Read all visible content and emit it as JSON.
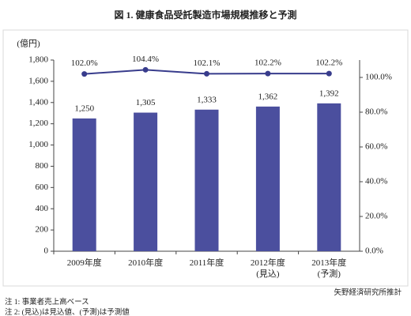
{
  "chart_data": {
    "type": "bar",
    "title": "図 1. 健康食品受託製造市場規模推移と予測",
    "y_label": "(億円)",
    "categories": [
      "2009年度",
      "2010年度",
      "2011年度",
      "2012年度\n(見込)",
      "2013年度\n(予測)"
    ],
    "series": [
      {
        "values": [
          1250,
          1305,
          1333,
          1362,
          1392
        ],
        "value_labels": [
          "1,250",
          "1,305",
          "1,333",
          "1,362",
          "1,392"
        ],
        "color": "#4b4f9e"
      },
      {
        "type": "line",
        "axis": "y2",
        "values": [
          102.0,
          104.4,
          102.1,
          102.2,
          102.2
        ],
        "value_labels": [
          "102.0%",
          "104.4%",
          "102.1%",
          "102.2%",
          "102.2%"
        ],
        "color": "#383c8c"
      }
    ],
    "ylim": [
      0,
      1800
    ],
    "yticks": [
      0,
      200,
      400,
      600,
      800,
      {
        "value": 1000,
        "label": "1,000"
      },
      {
        "value": 1200,
        "label": "1,200"
      },
      {
        "value": 1400,
        "label": "1,400"
      },
      {
        "value": 1600,
        "label": "1,600"
      },
      {
        "value": 1800,
        "label": "1,800"
      }
    ],
    "y2lim": [
      0,
      110
    ],
    "y2ticks": [
      {
        "value": 0,
        "label": "0.0%"
      },
      {
        "value": 20,
        "label": "20.0%"
      },
      {
        "value": 40,
        "label": "40.0%"
      },
      {
        "value": 60,
        "label": "60.0%"
      },
      {
        "value": 80,
        "label": "80.0%"
      },
      {
        "value": 100,
        "label": "100.0%"
      }
    ],
    "grid": false,
    "source": "矢野経済研究所推計",
    "notes": [
      "注 1: 事業者売上高ベース",
      "注 2: (見込)は見込値、(予測)は予測値"
    ]
  }
}
